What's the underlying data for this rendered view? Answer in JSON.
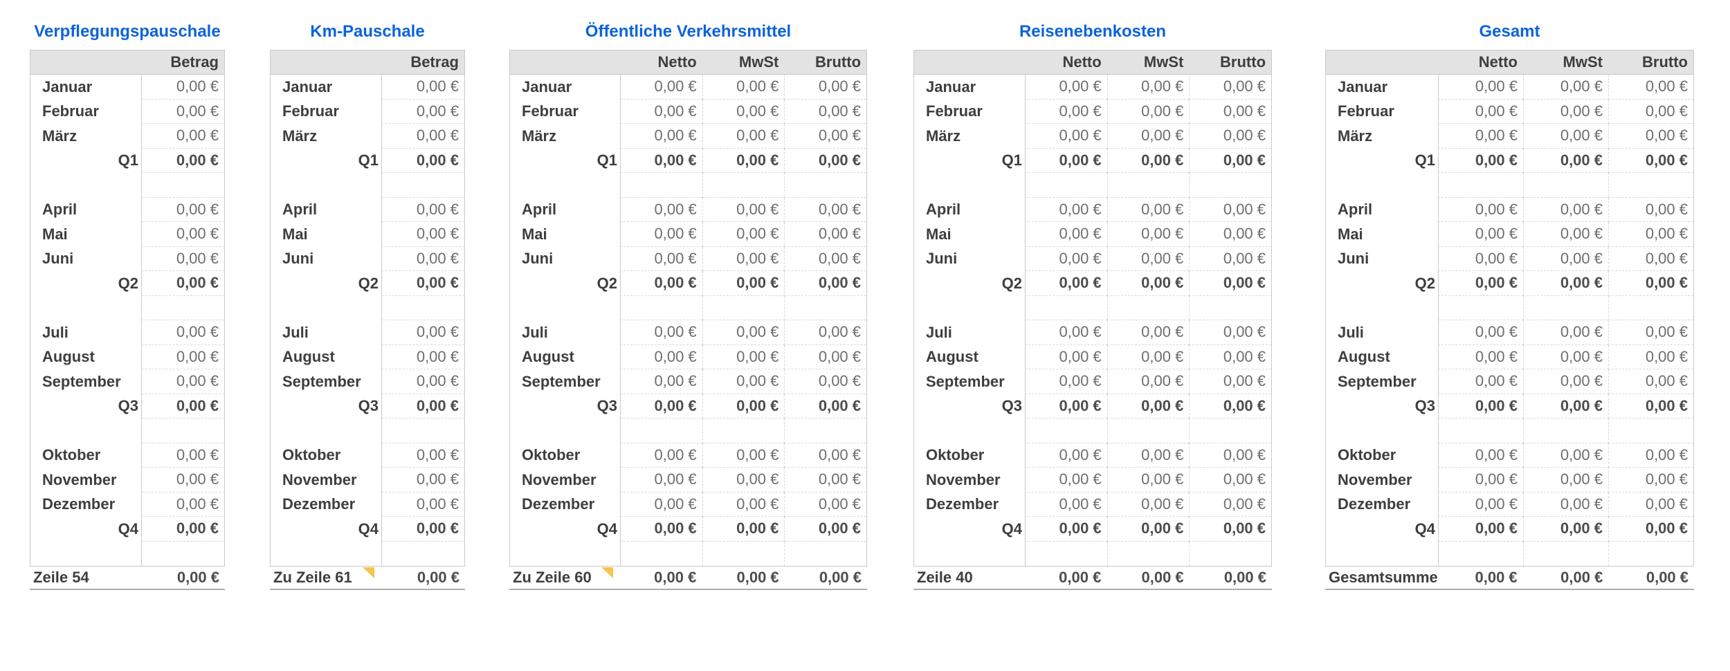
{
  "colors": {
    "title_blue": "#0b63dd",
    "header_bg": "#e3e3e3",
    "note_marker_yellow": "#f5c54b",
    "grid_border": "#c9c9c9"
  },
  "tables": [
    {
      "name": "verpflegungspauschale",
      "title": "Verpflegungspauschale",
      "columns": [
        "Betrag"
      ],
      "rows": [
        {
          "type": "month",
          "label": "Januar",
          "values": [
            "0,00 €"
          ]
        },
        {
          "type": "month",
          "label": "Februar",
          "values": [
            "0,00 €"
          ]
        },
        {
          "type": "month",
          "label": "März",
          "values": [
            "0,00 €"
          ]
        },
        {
          "type": "quarter",
          "label": "Q1",
          "values": [
            "0,00 €"
          ]
        },
        {
          "type": "blank"
        },
        {
          "type": "month",
          "label": "April",
          "values": [
            "0,00 €"
          ]
        },
        {
          "type": "month",
          "label": "Mai",
          "values": [
            "0,00 €"
          ]
        },
        {
          "type": "month",
          "label": "Juni",
          "values": [
            "0,00 €"
          ]
        },
        {
          "type": "quarter",
          "label": "Q2",
          "values": [
            "0,00 €"
          ]
        },
        {
          "type": "blank"
        },
        {
          "type": "month",
          "label": "Juli",
          "values": [
            "0,00 €"
          ]
        },
        {
          "type": "month",
          "label": "August",
          "values": [
            "0,00 €"
          ]
        },
        {
          "type": "month",
          "label": "September",
          "values": [
            "0,00 €"
          ]
        },
        {
          "type": "quarter",
          "label": "Q3",
          "values": [
            "0,00 €"
          ]
        },
        {
          "type": "blank"
        },
        {
          "type": "month",
          "label": "Oktober",
          "values": [
            "0,00 €"
          ]
        },
        {
          "type": "month",
          "label": "November",
          "values": [
            "0,00 €"
          ]
        },
        {
          "type": "month",
          "label": "Dezember",
          "values": [
            "0,00 €"
          ]
        },
        {
          "type": "quarter",
          "label": "Q4",
          "values": [
            "0,00 €"
          ]
        },
        {
          "type": "blank"
        }
      ],
      "footer": {
        "label": "Zeile 54",
        "note": false,
        "values": [
          "0,00 €"
        ]
      }
    },
    {
      "name": "km-pauschale",
      "title": "Km-Pauschale",
      "columns": [
        "Betrag"
      ],
      "rows": [
        {
          "type": "month",
          "label": "Januar",
          "values": [
            "0,00 €"
          ]
        },
        {
          "type": "month",
          "label": "Februar",
          "values": [
            "0,00 €"
          ]
        },
        {
          "type": "month",
          "label": "März",
          "values": [
            "0,00 €"
          ]
        },
        {
          "type": "quarter",
          "label": "Q1",
          "values": [
            "0,00 €"
          ]
        },
        {
          "type": "blank"
        },
        {
          "type": "month",
          "label": "April",
          "values": [
            "0,00 €"
          ]
        },
        {
          "type": "month",
          "label": "Mai",
          "values": [
            "0,00 €"
          ]
        },
        {
          "type": "month",
          "label": "Juni",
          "values": [
            "0,00 €"
          ]
        },
        {
          "type": "quarter",
          "label": "Q2",
          "values": [
            "0,00 €"
          ]
        },
        {
          "type": "blank"
        },
        {
          "type": "month",
          "label": "Juli",
          "values": [
            "0,00 €"
          ]
        },
        {
          "type": "month",
          "label": "August",
          "values": [
            "0,00 €"
          ]
        },
        {
          "type": "month",
          "label": "September",
          "values": [
            "0,00 €"
          ]
        },
        {
          "type": "quarter",
          "label": "Q3",
          "values": [
            "0,00 €"
          ]
        },
        {
          "type": "blank"
        },
        {
          "type": "month",
          "label": "Oktober",
          "values": [
            "0,00 €"
          ]
        },
        {
          "type": "month",
          "label": "November",
          "values": [
            "0,00 €"
          ]
        },
        {
          "type": "month",
          "label": "Dezember",
          "values": [
            "0,00 €"
          ]
        },
        {
          "type": "quarter",
          "label": "Q4",
          "values": [
            "0,00 €"
          ]
        },
        {
          "type": "blank"
        }
      ],
      "footer": {
        "label": "Zu Zeile 61",
        "note": true,
        "values": [
          "0,00 €"
        ]
      }
    },
    {
      "name": "oeffentliche-verkehrsmittel",
      "title": "Öffentliche Verkehrsmittel",
      "columns": [
        "Netto",
        "MwSt",
        "Brutto"
      ],
      "rows": [
        {
          "type": "month",
          "label": "Januar",
          "values": [
            "0,00 €",
            "0,00 €",
            "0,00 €"
          ]
        },
        {
          "type": "month",
          "label": "Februar",
          "values": [
            "0,00 €",
            "0,00 €",
            "0,00 €"
          ]
        },
        {
          "type": "month",
          "label": "März",
          "values": [
            "0,00 €",
            "0,00 €",
            "0,00 €"
          ]
        },
        {
          "type": "quarter",
          "label": "Q1",
          "values": [
            "0,00 €",
            "0,00 €",
            "0,00 €"
          ]
        },
        {
          "type": "blank"
        },
        {
          "type": "month",
          "label": "April",
          "values": [
            "0,00 €",
            "0,00 €",
            "0,00 €"
          ]
        },
        {
          "type": "month",
          "label": "Mai",
          "values": [
            "0,00 €",
            "0,00 €",
            "0,00 €"
          ]
        },
        {
          "type": "month",
          "label": "Juni",
          "values": [
            "0,00 €",
            "0,00 €",
            "0,00 €"
          ]
        },
        {
          "type": "quarter",
          "label": "Q2",
          "values": [
            "0,00 €",
            "0,00 €",
            "0,00 €"
          ]
        },
        {
          "type": "blank"
        },
        {
          "type": "month",
          "label": "Juli",
          "values": [
            "0,00 €",
            "0,00 €",
            "0,00 €"
          ]
        },
        {
          "type": "month",
          "label": "August",
          "values": [
            "0,00 €",
            "0,00 €",
            "0,00 €"
          ]
        },
        {
          "type": "month",
          "label": "September",
          "values": [
            "0,00 €",
            "0,00 €",
            "0,00 €"
          ]
        },
        {
          "type": "quarter",
          "label": "Q3",
          "values": [
            "0,00 €",
            "0,00 €",
            "0,00 €"
          ]
        },
        {
          "type": "blank"
        },
        {
          "type": "month",
          "label": "Oktober",
          "values": [
            "0,00 €",
            "0,00 €",
            "0,00 €"
          ]
        },
        {
          "type": "month",
          "label": "November",
          "values": [
            "0,00 €",
            "0,00 €",
            "0,00 €"
          ]
        },
        {
          "type": "month",
          "label": "Dezember",
          "values": [
            "0,00 €",
            "0,00 €",
            "0,00 €"
          ]
        },
        {
          "type": "quarter",
          "label": "Q4",
          "values": [
            "0,00 €",
            "0,00 €",
            "0,00 €"
          ]
        },
        {
          "type": "blank"
        }
      ],
      "footer": {
        "label": "Zu Zeile 60",
        "note": true,
        "values": [
          "0,00 €",
          "0,00 €",
          "0,00 €"
        ]
      }
    },
    {
      "name": "reisenebenkosten",
      "title": "Reisenebenkosten",
      "columns": [
        "Netto",
        "MwSt",
        "Brutto"
      ],
      "rows": [
        {
          "type": "month",
          "label": "Januar",
          "values": [
            "0,00 €",
            "0,00 €",
            "0,00 €"
          ]
        },
        {
          "type": "month",
          "label": "Februar",
          "values": [
            "0,00 €",
            "0,00 €",
            "0,00 €"
          ]
        },
        {
          "type": "month",
          "label": "März",
          "values": [
            "0,00 €",
            "0,00 €",
            "0,00 €"
          ]
        },
        {
          "type": "quarter",
          "label": "Q1",
          "values": [
            "0,00 €",
            "0,00 €",
            "0,00 €"
          ]
        },
        {
          "type": "blank"
        },
        {
          "type": "month",
          "label": "April",
          "values": [
            "0,00 €",
            "0,00 €",
            "0,00 €"
          ]
        },
        {
          "type": "month",
          "label": "Mai",
          "values": [
            "0,00 €",
            "0,00 €",
            "0,00 €"
          ]
        },
        {
          "type": "month",
          "label": "Juni",
          "values": [
            "0,00 €",
            "0,00 €",
            "0,00 €"
          ]
        },
        {
          "type": "quarter",
          "label": "Q2",
          "values": [
            "0,00 €",
            "0,00 €",
            "0,00 €"
          ]
        },
        {
          "type": "blank"
        },
        {
          "type": "month",
          "label": "Juli",
          "values": [
            "0,00 €",
            "0,00 €",
            "0,00 €"
          ]
        },
        {
          "type": "month",
          "label": "August",
          "values": [
            "0,00 €",
            "0,00 €",
            "0,00 €"
          ]
        },
        {
          "type": "month",
          "label": "September",
          "values": [
            "0,00 €",
            "0,00 €",
            "0,00 €"
          ]
        },
        {
          "type": "quarter",
          "label": "Q3",
          "values": [
            "0,00 €",
            "0,00 €",
            "0,00 €"
          ]
        },
        {
          "type": "blank"
        },
        {
          "type": "month",
          "label": "Oktober",
          "values": [
            "0,00 €",
            "0,00 €",
            "0,00 €"
          ]
        },
        {
          "type": "month",
          "label": "November",
          "values": [
            "0,00 €",
            "0,00 €",
            "0,00 €"
          ]
        },
        {
          "type": "month",
          "label": "Dezember",
          "values": [
            "0,00 €",
            "0,00 €",
            "0,00 €"
          ]
        },
        {
          "type": "quarter",
          "label": "Q4",
          "values": [
            "0,00 €",
            "0,00 €",
            "0,00 €"
          ]
        },
        {
          "type": "blank"
        }
      ],
      "footer": {
        "label": "Zeile 40",
        "note": false,
        "values": [
          "0,00 €",
          "0,00 €",
          "0,00 €"
        ]
      }
    },
    {
      "name": "gesamt",
      "title": "Gesamt",
      "columns": [
        "Netto",
        "MwSt",
        "Brutto"
      ],
      "rows": [
        {
          "type": "month",
          "label": "Januar",
          "values": [
            "0,00 €",
            "0,00 €",
            "0,00 €"
          ]
        },
        {
          "type": "month",
          "label": "Februar",
          "values": [
            "0,00 €",
            "0,00 €",
            "0,00 €"
          ]
        },
        {
          "type": "month",
          "label": "März",
          "values": [
            "0,00 €",
            "0,00 €",
            "0,00 €"
          ]
        },
        {
          "type": "quarter",
          "label": "Q1",
          "values": [
            "0,00 €",
            "0,00 €",
            "0,00 €"
          ]
        },
        {
          "type": "blank"
        },
        {
          "type": "month",
          "label": "April",
          "values": [
            "0,00 €",
            "0,00 €",
            "0,00 €"
          ]
        },
        {
          "type": "month",
          "label": "Mai",
          "values": [
            "0,00 €",
            "0,00 €",
            "0,00 €"
          ]
        },
        {
          "type": "month",
          "label": "Juni",
          "values": [
            "0,00 €",
            "0,00 €",
            "0,00 €"
          ]
        },
        {
          "type": "quarter",
          "label": "Q2",
          "values": [
            "0,00 €",
            "0,00 €",
            "0,00 €"
          ]
        },
        {
          "type": "blank"
        },
        {
          "type": "month",
          "label": "Juli",
          "values": [
            "0,00 €",
            "0,00 €",
            "0,00 €"
          ]
        },
        {
          "type": "month",
          "label": "August",
          "values": [
            "0,00 €",
            "0,00 €",
            "0,00 €"
          ]
        },
        {
          "type": "month",
          "label": "September",
          "values": [
            "0,00 €",
            "0,00 €",
            "0,00 €"
          ]
        },
        {
          "type": "quarter",
          "label": "Q3",
          "values": [
            "0,00 €",
            "0,00 €",
            "0,00 €"
          ]
        },
        {
          "type": "blank"
        },
        {
          "type": "month",
          "label": "Oktober",
          "values": [
            "0,00 €",
            "0,00 €",
            "0,00 €"
          ]
        },
        {
          "type": "month",
          "label": "November",
          "values": [
            "0,00 €",
            "0,00 €",
            "0,00 €"
          ]
        },
        {
          "type": "month",
          "label": "Dezember",
          "values": [
            "0,00 €",
            "0,00 €",
            "0,00 €"
          ]
        },
        {
          "type": "quarter",
          "label": "Q4",
          "values": [
            "0,00 €",
            "0,00 €",
            "0,00 €"
          ]
        },
        {
          "type": "blank"
        }
      ],
      "footer": {
        "label": "Gesamtsumme",
        "note": false,
        "values": [
          "0,00 €",
          "0,00 €",
          "0,00 €"
        ]
      }
    }
  ]
}
